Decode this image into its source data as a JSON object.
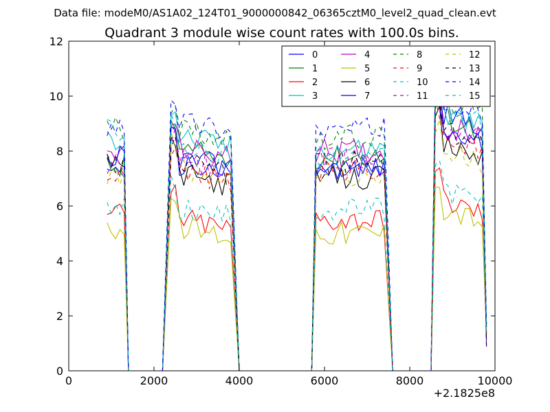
{
  "page_title": "Data file: modeM0/AS1A02_124T01_9000000842_06365cztM0_level2_quad_clean.evt",
  "chart_data": {
    "type": "line",
    "title": "Quadrant 3 module wise count rates with 100.0s bins.",
    "suptitle": "Data file: modeM0/AS1A02_124T01_9000000842_06365cztM0_level2_quad_clean.evt",
    "xlabel": "",
    "ylabel": "",
    "x_offset_label": "+2.1825e8",
    "xlim": [
      0,
      10000
    ],
    "ylim": [
      0,
      12
    ],
    "x_ticks": [
      0,
      2000,
      4000,
      6000,
      8000,
      10000
    ],
    "x_tick_labels": [
      "0",
      "2000",
      "4000",
      "6000",
      "8000",
      "10000"
    ],
    "y_ticks": [
      0,
      2,
      4,
      6,
      8,
      10,
      12
    ],
    "y_tick_labels": [
      "0",
      "2",
      "4",
      "6",
      "8",
      "10",
      "12"
    ],
    "grid": false,
    "legend_position": "upper right",
    "legend_columns": 4,
    "segments": [
      {
        "start": 900,
        "end": 1300,
        "n": 5,
        "zero_after": 1400,
        "zero_before": null
      },
      {
        "start": 2400,
        "end": 3800,
        "n": 15,
        "zero_after": 4000,
        "zero_before": 2200
      },
      {
        "start": 5800,
        "end": 7400,
        "n": 17,
        "zero_after": 7600,
        "zero_before": 5700
      },
      {
        "start": 8600,
        "end": 9700,
        "n": 12,
        "zero_after": 9800,
        "zero_before": 8500
      }
    ],
    "x_end": 9800,
    "end_values_note": "final point of every series drops toward ~1 at x=9800",
    "series": [
      {
        "name": "0",
        "color": "#0000ff",
        "dashed": false,
        "levels": [
          7.0,
          7.8,
          7.4,
          9.5
        ]
      },
      {
        "name": "1",
        "color": "#008000",
        "dashed": false,
        "levels": [
          7.4,
          8.1,
          7.8,
          9.3
        ]
      },
      {
        "name": "2",
        "color": "#ff0000",
        "dashed": false,
        "levels": [
          5.7,
          5.6,
          5.5,
          6.3
        ]
      },
      {
        "name": "3",
        "color": "#00bfbf",
        "dashed": false,
        "levels": [
          8.4,
          8.6,
          8.1,
          9.4
        ]
      },
      {
        "name": "4",
        "color": "#bf00bf",
        "dashed": false,
        "levels": [
          7.9,
          8.2,
          8.0,
          9.0
        ]
      },
      {
        "name": "5",
        "color": "#bfbf00",
        "dashed": false,
        "levels": [
          5.2,
          5.3,
          5.0,
          6.0
        ]
      },
      {
        "name": "6",
        "color": "#000000",
        "dashed": false,
        "levels": [
          7.6,
          7.2,
          7.0,
          8.3
        ]
      },
      {
        "name": "7",
        "color": "#0000ff",
        "dashed": false,
        "levels": [
          7.8,
          7.6,
          7.3,
          8.8
        ]
      },
      {
        "name": "8",
        "color": "#008000",
        "dashed": true,
        "levels": [
          8.8,
          8.9,
          8.5,
          9.9
        ]
      },
      {
        "name": "9",
        "color": "#ff0000",
        "dashed": true,
        "levels": [
          7.3,
          7.3,
          7.3,
          8.5
        ]
      },
      {
        "name": "10",
        "color": "#00bfbf",
        "dashed": true,
        "levels": [
          5.9,
          6.0,
          5.9,
          6.7
        ]
      },
      {
        "name": "11",
        "color": "#bf00bf",
        "dashed": true,
        "levels": [
          7.5,
          7.7,
          7.7,
          9.0
        ]
      },
      {
        "name": "12",
        "color": "#bfbf00",
        "dashed": true,
        "levels": [
          7.2,
          7.4,
          7.1,
          8.1
        ]
      },
      {
        "name": "13",
        "color": "#000000",
        "dashed": true,
        "levels": [
          7.6,
          7.6,
          7.6,
          8.8
        ]
      },
      {
        "name": "14",
        "color": "#0000ff",
        "dashed": true,
        "levels": [
          9.0,
          9.2,
          8.8,
          10.0
        ]
      },
      {
        "name": "15",
        "color": "#00bfbf",
        "dashed": true,
        "levels": [
          8.7,
          8.1,
          7.8,
          9.6
        ]
      }
    ]
  }
}
